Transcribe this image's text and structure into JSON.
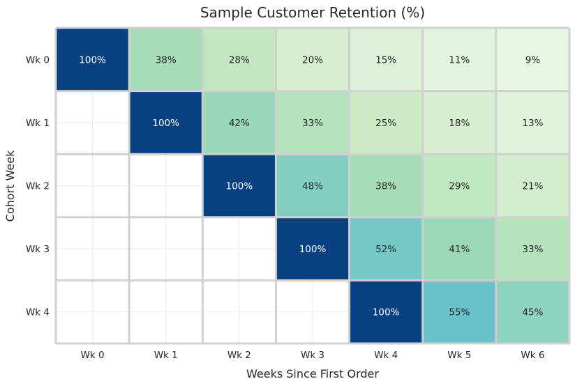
{
  "chart_data": {
    "type": "heatmap",
    "title": "Sample Customer Retention (%)",
    "xlabel": "Weeks Since First Order",
    "ylabel": "Cohort Week",
    "x_categories": [
      "Wk 0",
      "Wk 1",
      "Wk 2",
      "Wk 3",
      "Wk 4",
      "Wk 5",
      "Wk 6"
    ],
    "y_categories": [
      "Wk 0",
      "Wk 1",
      "Wk 2",
      "Wk 3",
      "Wk 4"
    ],
    "values": [
      [
        100,
        38,
        28,
        20,
        15,
        11,
        9
      ],
      [
        null,
        100,
        42,
        33,
        25,
        18,
        13
      ],
      [
        null,
        null,
        100,
        48,
        38,
        29,
        21
      ],
      [
        null,
        null,
        null,
        100,
        52,
        41,
        33
      ],
      [
        null,
        null,
        null,
        null,
        100,
        55,
        45
      ]
    ],
    "value_suffix": "%",
    "colormap": "GnBu",
    "colorbar": false,
    "grid": true
  }
}
